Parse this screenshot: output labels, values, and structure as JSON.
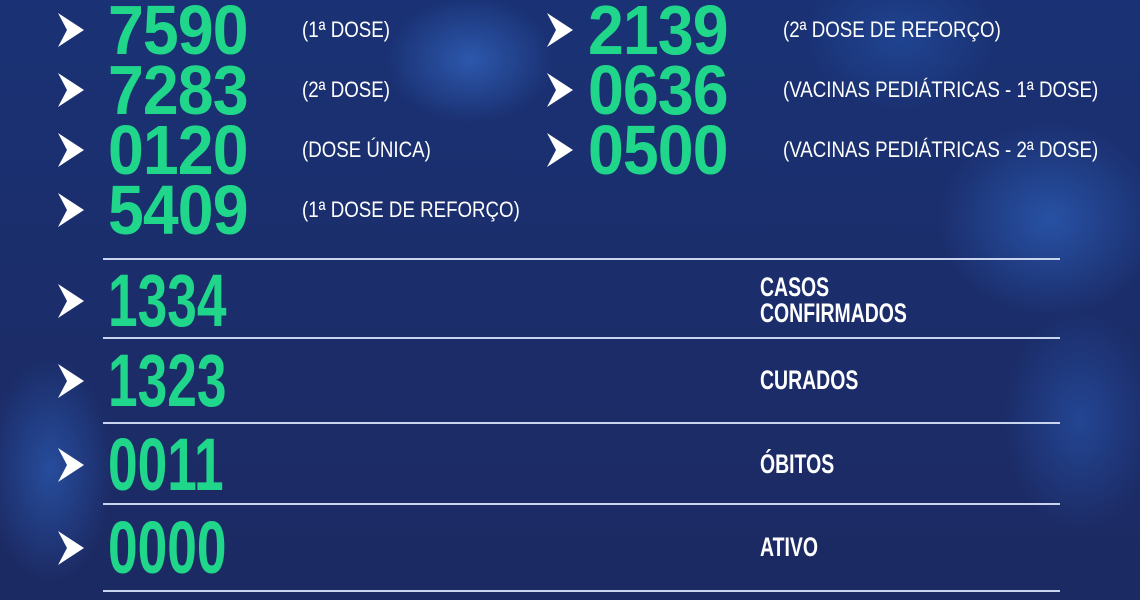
{
  "colors": {
    "number": "#1fd68a",
    "background": "#1b2d6a",
    "text": "#ffffff"
  },
  "vaccines_left": [
    {
      "value": "7590",
      "label": "(1ª DOSE)"
    },
    {
      "value": "7283",
      "label": "(2ª DOSE)"
    },
    {
      "value": "0120",
      "label": "(DOSE ÚNICA)"
    },
    {
      "value": "5409",
      "label": "(1ª DOSE DE REFORÇO)"
    }
  ],
  "vaccines_right": [
    {
      "value": "2139",
      "label": "(2ª DOSE DE REFORÇO)"
    },
    {
      "value": "0636",
      "label": "(VACINAS PEDIÁTRICAS - 1ª DOSE)"
    },
    {
      "value": "0500",
      "label": "(VACINAS PEDIÁTRICAS - 2ª DOSE)"
    }
  ],
  "cases": [
    {
      "value": "1334",
      "label_line1": "CASOS",
      "label_line2": "CONFIRMADOS"
    },
    {
      "value": "1323",
      "label_line1": "CURADOS"
    },
    {
      "value": "0011",
      "label_line1": "ÓBITOS"
    },
    {
      "value": "0000",
      "label_line1": "ATIVO"
    }
  ],
  "icons": {
    "bullet": "chevron-right-icon"
  }
}
